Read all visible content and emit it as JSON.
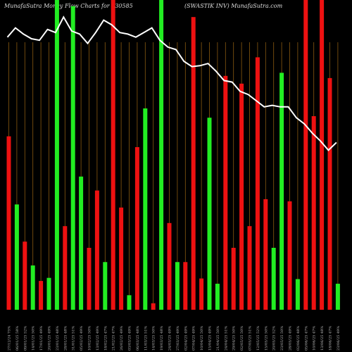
{
  "header": {
    "left": "MunafaSutra  Money Flow  Charts for 530585",
    "right": "(SWASTIK INV) MunafaSutra.com"
  },
  "colors": {
    "up": "#22ee22",
    "down": "#ee1111",
    "line": "#ffffff",
    "grid": "#8a5a10",
    "background": "#000000"
  },
  "chart_data": {
    "type": "bar",
    "series": [
      {
        "color_key": "bar",
        "values": [
          0.56,
          0.34,
          0.22,
          0.143,
          0.093,
          0.103,
          1.0,
          0.27,
          0.98,
          0.43,
          0.2,
          0.385,
          0.154,
          1.0,
          0.33,
          0.047,
          0.525,
          0.65,
          0.021,
          1.0,
          0.28,
          0.154,
          0.154,
          0.945,
          0.101,
          0.62,
          0.084,
          0.755,
          0.2,
          0.73,
          0.27,
          0.815,
          0.357,
          0.2,
          0.765,
          0.35,
          0.099,
          1.0,
          0.625,
          1.0,
          0.748,
          0.084
        ]
      },
      {
        "color_key": "line",
        "values": [
          0.88,
          0.91,
          0.89,
          0.875,
          0.87,
          0.905,
          0.895,
          0.945,
          0.9,
          0.89,
          0.86,
          0.895,
          0.935,
          0.92,
          0.895,
          0.89,
          0.88,
          0.895,
          0.91,
          0.87,
          0.848,
          0.84,
          0.802,
          0.785,
          0.788,
          0.795,
          0.77,
          0.74,
          0.735,
          0.705,
          0.695,
          0.675,
          0.655,
          0.66,
          0.655,
          0.655,
          0.62,
          0.6,
          0.57,
          0.545,
          0.515,
          0.54
        ]
      }
    ],
    "bar_colors": [
      "red",
      "green",
      "red",
      "green",
      "red",
      "green",
      "green",
      "red",
      "green",
      "green",
      "red",
      "red",
      "green",
      "red",
      "red",
      "green",
      "red",
      "green",
      "red",
      "green",
      "red",
      "green",
      "red",
      "red",
      "red",
      "green",
      "green",
      "red",
      "red",
      "red",
      "red",
      "red",
      "red",
      "green",
      "green",
      "red",
      "green",
      "red",
      "red",
      "red",
      "red",
      "green"
    ],
    "categories": [
      "27/12/24 75%",
      "06/01/25 58%",
      "09/01/25 52%",
      "14/01/25 50%",
      "17/01/25 49%",
      "20/01/25 49%",
      "23/01/25 48%",
      "28/01/25 48%",
      "31/01/25 51%",
      "05/02/25 49%",
      "10/02/25 50%",
      "13/02/25 49%",
      "18/02/25 47%",
      "21/02/25 47%",
      "26/02/25 49%",
      "03/03/25 49%",
      "06/03/25 48%",
      "11/03/25 51%",
      "14/03/25 50%",
      "19/03/25 48%",
      "24/03/25 49%",
      "27/03/25 49%",
      "02/04/25 49%",
      "07/04/25 49%",
      "10/04/25 50%",
      "15/04/25 49%",
      "21/04/25 50%",
      "24/04/25 51%",
      "29/04/25 50%",
      "02/05/25 50%",
      "07/05/25 51%",
      "12/05/25 52%",
      "15/05/25 50%",
      "20/05/25 52%",
      "23/05/25 50%",
      "28/05/25 49%",
      "02/06/25 48%",
      "05/06/25 47%",
      "10/06/25 47%",
      "13/06/25 48%",
      "18/06/25 47%",
      "23/06/25 49%"
    ]
  }
}
